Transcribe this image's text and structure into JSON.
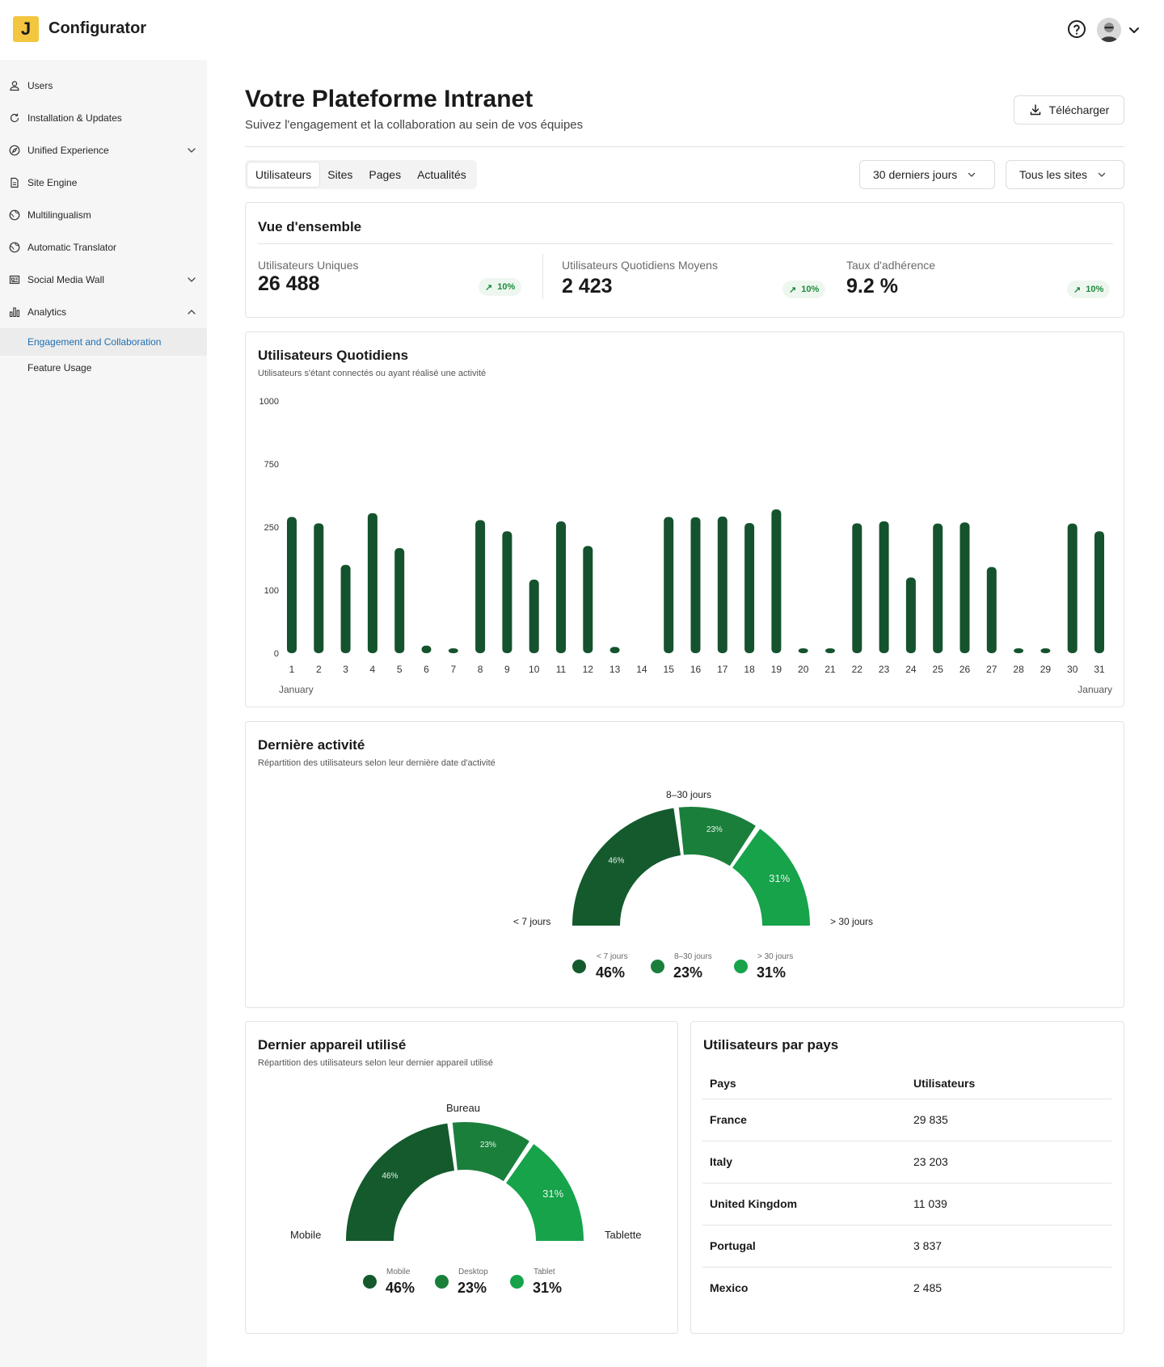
{
  "app": {
    "logo_letter": "J",
    "title": "Configurator"
  },
  "sidebar": {
    "items": [
      {
        "label": "Users",
        "icon": "user-icon",
        "chevron": ""
      },
      {
        "label": "Installation & Updates",
        "icon": "refresh-icon",
        "chevron": ""
      },
      {
        "label": "Unified Experience",
        "icon": "compass-icon",
        "chevron": "down"
      },
      {
        "label": "Site Engine",
        "icon": "document-icon",
        "chevron": ""
      },
      {
        "label": "Multilingualism",
        "icon": "globe-icon",
        "chevron": ""
      },
      {
        "label": "Automatic Translator",
        "icon": "globe-icon",
        "chevron": ""
      },
      {
        "label": "Social Media Wall",
        "icon": "newspaper-icon",
        "chevron": "down"
      },
      {
        "label": "Analytics",
        "icon": "bar-chart-icon",
        "chevron": "up"
      }
    ],
    "subitems": [
      {
        "label": "Engagement and Collaboration",
        "active": true
      },
      {
        "label": "Feature Usage",
        "active": false
      }
    ]
  },
  "header": {
    "title": "Votre Plateforme Intranet",
    "subtitle": "Suivez l'engagement et la collaboration au sein de vos équipes",
    "download_label": "Télécharger"
  },
  "tabs": [
    "Utilisateurs",
    "Sites",
    "Pages",
    "Actualités"
  ],
  "active_tab": "Utilisateurs",
  "filters": {
    "period": "30 derniers jours",
    "sites": "Tous les sites"
  },
  "overview": {
    "title": "Vue d'ensemble",
    "kpis": [
      {
        "label": "Utilisateurs Uniques",
        "value": "26 488",
        "change": "10%"
      },
      {
        "label": "Utilisateurs Quotidiens Moyens",
        "value": "2 423",
        "change": "10%"
      },
      {
        "label": "Taux d'adhérence",
        "value": "9.2 %",
        "change": "10%"
      }
    ]
  },
  "daily_card": {
    "title": "Utilisateurs Quotidiens",
    "subtitle": "Utilisateurs s'étant connectés ou ayant réalisé une activité",
    "month_left": "January",
    "month_right": "January"
  },
  "last_activity": {
    "title": "Dernière activité",
    "subtitle": "Répartition des utilisateurs selon leur dernière date d'activité",
    "segments": [
      {
        "label": "< 7 jours",
        "pct": "46%",
        "value": 46,
        "color": "#145a2c"
      },
      {
        "label": "8–30 jours",
        "pct": "23%",
        "value": 23,
        "color": "#1b7f3c"
      },
      {
        "label": "> 30 jours",
        "pct": "31%",
        "value": 31,
        "color": "#16a34a"
      }
    ]
  },
  "last_device": {
    "title": "Dernier appareil utilisé",
    "subtitle": "Répartition des utilisateurs selon leur dernier appareil utilisé",
    "segments": [
      {
        "label": "Mobile",
        "pct": "46%",
        "value": 46,
        "color": "#145a2c"
      },
      {
        "label": "Bureau",
        "pct": "23%",
        "value": 23,
        "color": "#1b7f3c"
      },
      {
        "label": "Tablette",
        "pct": "31%",
        "value": 31,
        "color": "#16a34a"
      }
    ],
    "legend": [
      "Mobile",
      "Desktop",
      "Tablet"
    ]
  },
  "countries": {
    "title": "Utilisateurs par pays",
    "headers": [
      "Pays",
      "Utilisateurs"
    ],
    "rows": [
      [
        "France",
        "29 835"
      ],
      [
        "Italy",
        "23 203"
      ],
      [
        "United Kingdom",
        "11 039"
      ],
      [
        "Portugal",
        "3 837"
      ],
      [
        "Mexico",
        "2 485"
      ]
    ]
  },
  "chart_data": {
    "type": "bar",
    "title": "Utilisateurs Quotidiens",
    "xlabel": "January",
    "ylabel": "",
    "y_ticks": [
      "0",
      "100",
      "250",
      "750",
      "1000"
    ],
    "ylim": [
      0,
      1000
    ],
    "categories": [
      "1",
      "2",
      "3",
      "4",
      "5",
      "6",
      "7",
      "8",
      "9",
      "10",
      "11",
      "12",
      "13",
      "14",
      "15",
      "16",
      "17",
      "18",
      "19",
      "20",
      "21",
      "22",
      "23",
      "24",
      "25",
      "26",
      "27",
      "28",
      "29",
      "30",
      "31"
    ],
    "values": [
      330,
      280,
      160,
      360,
      200,
      12,
      5,
      305,
      240,
      125,
      295,
      205,
      10,
      0,
      330,
      328,
      333,
      282,
      390,
      7,
      4,
      280,
      296,
      130,
      278,
      287,
      155,
      7,
      5,
      278,
      240
    ],
    "color": "#14532d",
    "grid": false,
    "legend": "none"
  }
}
